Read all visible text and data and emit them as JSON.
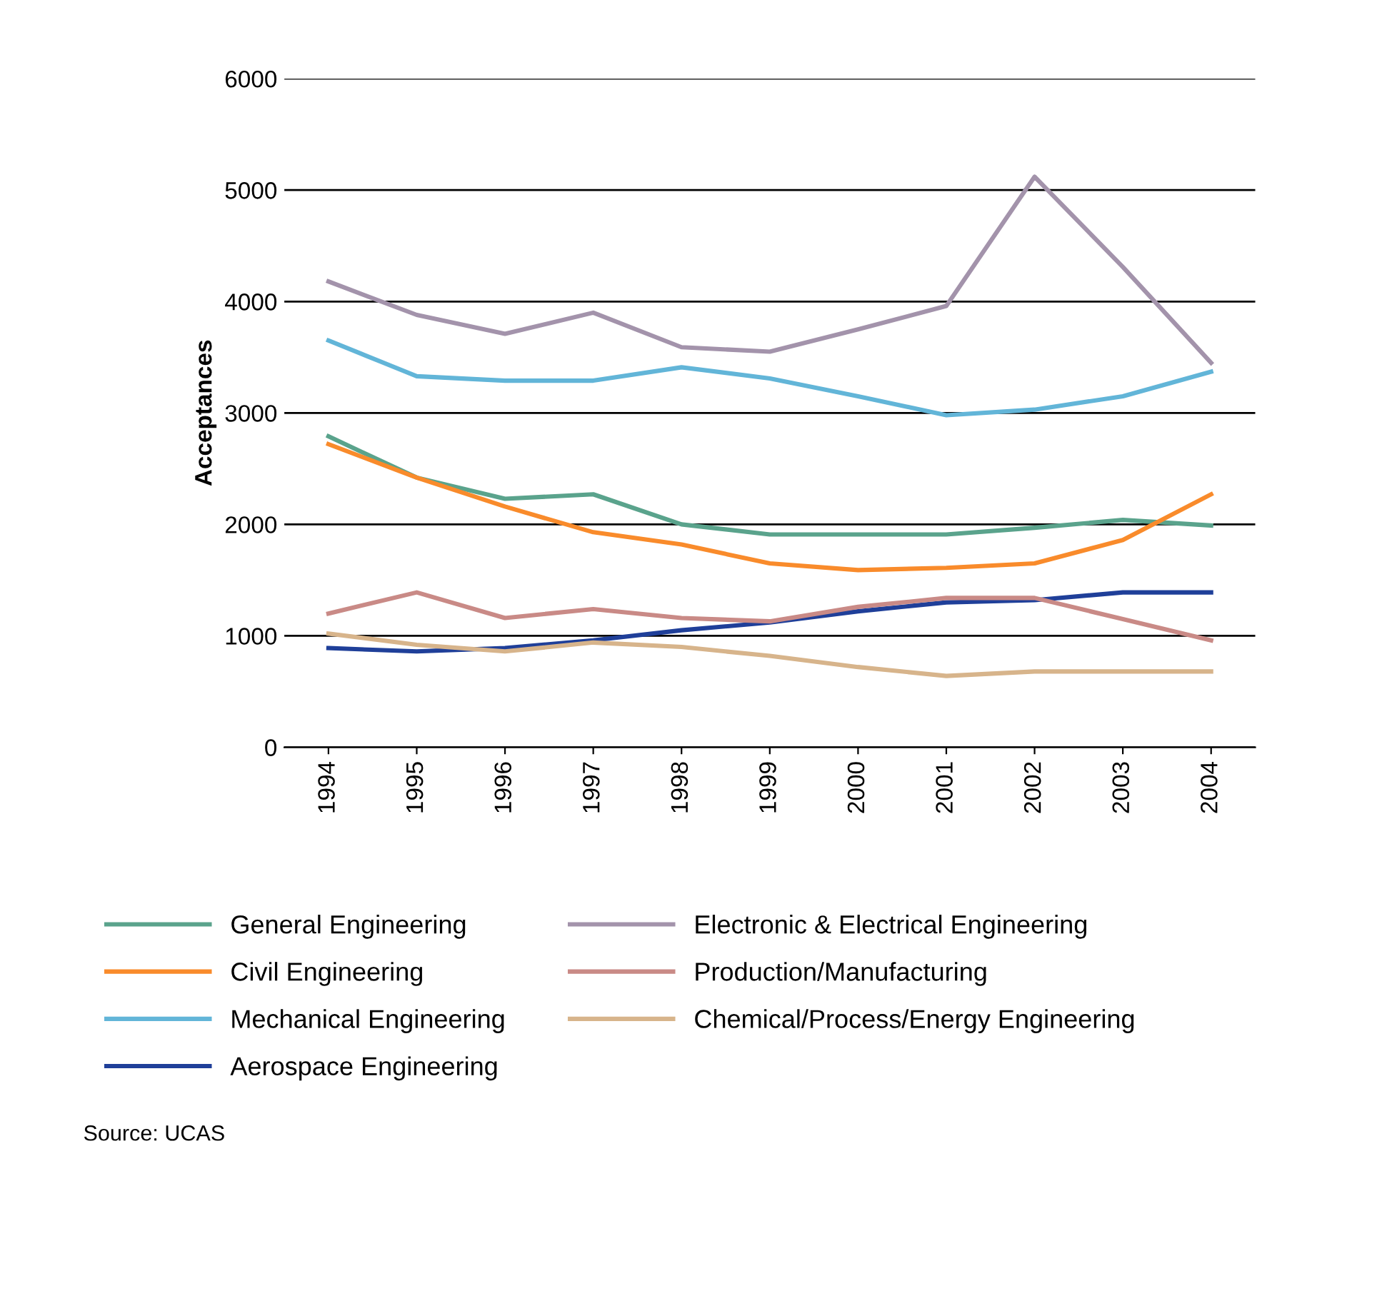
{
  "chart_data": {
    "type": "line",
    "ylabel": "Acceptances",
    "categories": [
      "1994",
      "1995",
      "1996",
      "1997",
      "1998",
      "1999",
      "2000",
      "2001",
      "2002",
      "2003",
      "2004"
    ],
    "ylim": [
      0,
      6000
    ],
    "yticks": [
      0,
      1000,
      2000,
      3000,
      4000,
      5000,
      6000
    ],
    "grid": "y",
    "legend": "bottom",
    "marker": "none",
    "line_style": "solid",
    "series": [
      {
        "name": "General Engineering",
        "color": "#5aa38c",
        "values": [
          2790,
          2420,
          2230,
          2270,
          2000,
          1910,
          1910,
          1910,
          1970,
          2040,
          1990
        ]
      },
      {
        "name": "Civil Engineering",
        "color": "#f98b2b",
        "values": [
          2720,
          2420,
          2160,
          1930,
          1820,
          1650,
          1590,
          1610,
          1650,
          1860,
          2270
        ]
      },
      {
        "name": "Mechanical Engineering",
        "color": "#62b5d8",
        "values": [
          3650,
          3330,
          3290,
          3290,
          3410,
          3310,
          3150,
          2980,
          3030,
          3150,
          3370
        ]
      },
      {
        "name": "Aerospace Engineering",
        "color": "#1f3f99",
        "values": [
          890,
          860,
          890,
          960,
          1050,
          1120,
          1220,
          1300,
          1320,
          1390,
          1390
        ]
      },
      {
        "name": "Electronic & Electrical Engineering",
        "color": "#a393ab",
        "values": [
          4180,
          3880,
          3710,
          3900,
          3590,
          3550,
          3750,
          3960,
          5120,
          4310,
          3450
        ]
      },
      {
        "name": "Production/Manufacturing",
        "color": "#c98a86",
        "values": [
          1200,
          1390,
          1160,
          1240,
          1160,
          1130,
          1260,
          1340,
          1340,
          1150,
          960
        ]
      },
      {
        "name": "Chemical/Process/Energy Engineering",
        "color": "#d7b48b",
        "values": [
          1020,
          920,
          860,
          940,
          900,
          820,
          720,
          640,
          680,
          680,
          680
        ]
      }
    ],
    "annotations": [
      "Source: UCAS"
    ]
  }
}
